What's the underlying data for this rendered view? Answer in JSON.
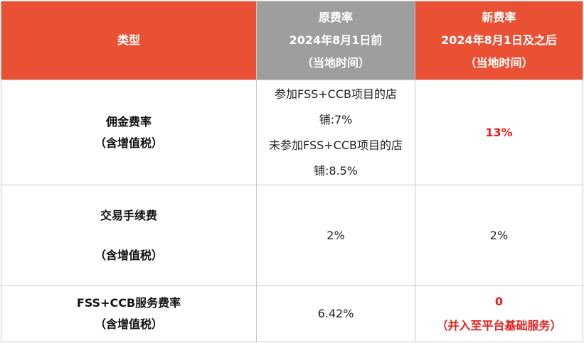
{
  "header": {
    "type": "类型",
    "old_line1": "原费率",
    "old_line2": "2024年8月1日前",
    "old_line3": "（当地时间）",
    "new_line1": "新费率",
    "new_line2": "2024年8月1日及之后",
    "new_line3": "（当地时间）"
  },
  "rows": [
    {
      "type_line1": "佣金费率",
      "type_line2": "（含增值税）",
      "old_rate_fss": "参加FSS+CCB项目的店铺:7%",
      "old_rate_non_fss": "未参加FSS+CCB项目的店铺:8.5%",
      "new_rate": "13%"
    },
    {
      "type_line1": "交易手续费",
      "type_line2": "（含增值税）",
      "old_rate": "2%",
      "new_rate": "2%"
    },
    {
      "type_line1": "FSS+CCB服务费率",
      "type_line2": "（含增值税）",
      "old_rate": "6.42%",
      "new_rate": "0",
      "new_rate_note": "（并入至平台基础服务）"
    }
  ],
  "colors": {
    "header_accent": "#ea5033",
    "header_old": "#9e9e9e",
    "highlight_red": "#e8201c",
    "border": "#c9c9c9"
  }
}
